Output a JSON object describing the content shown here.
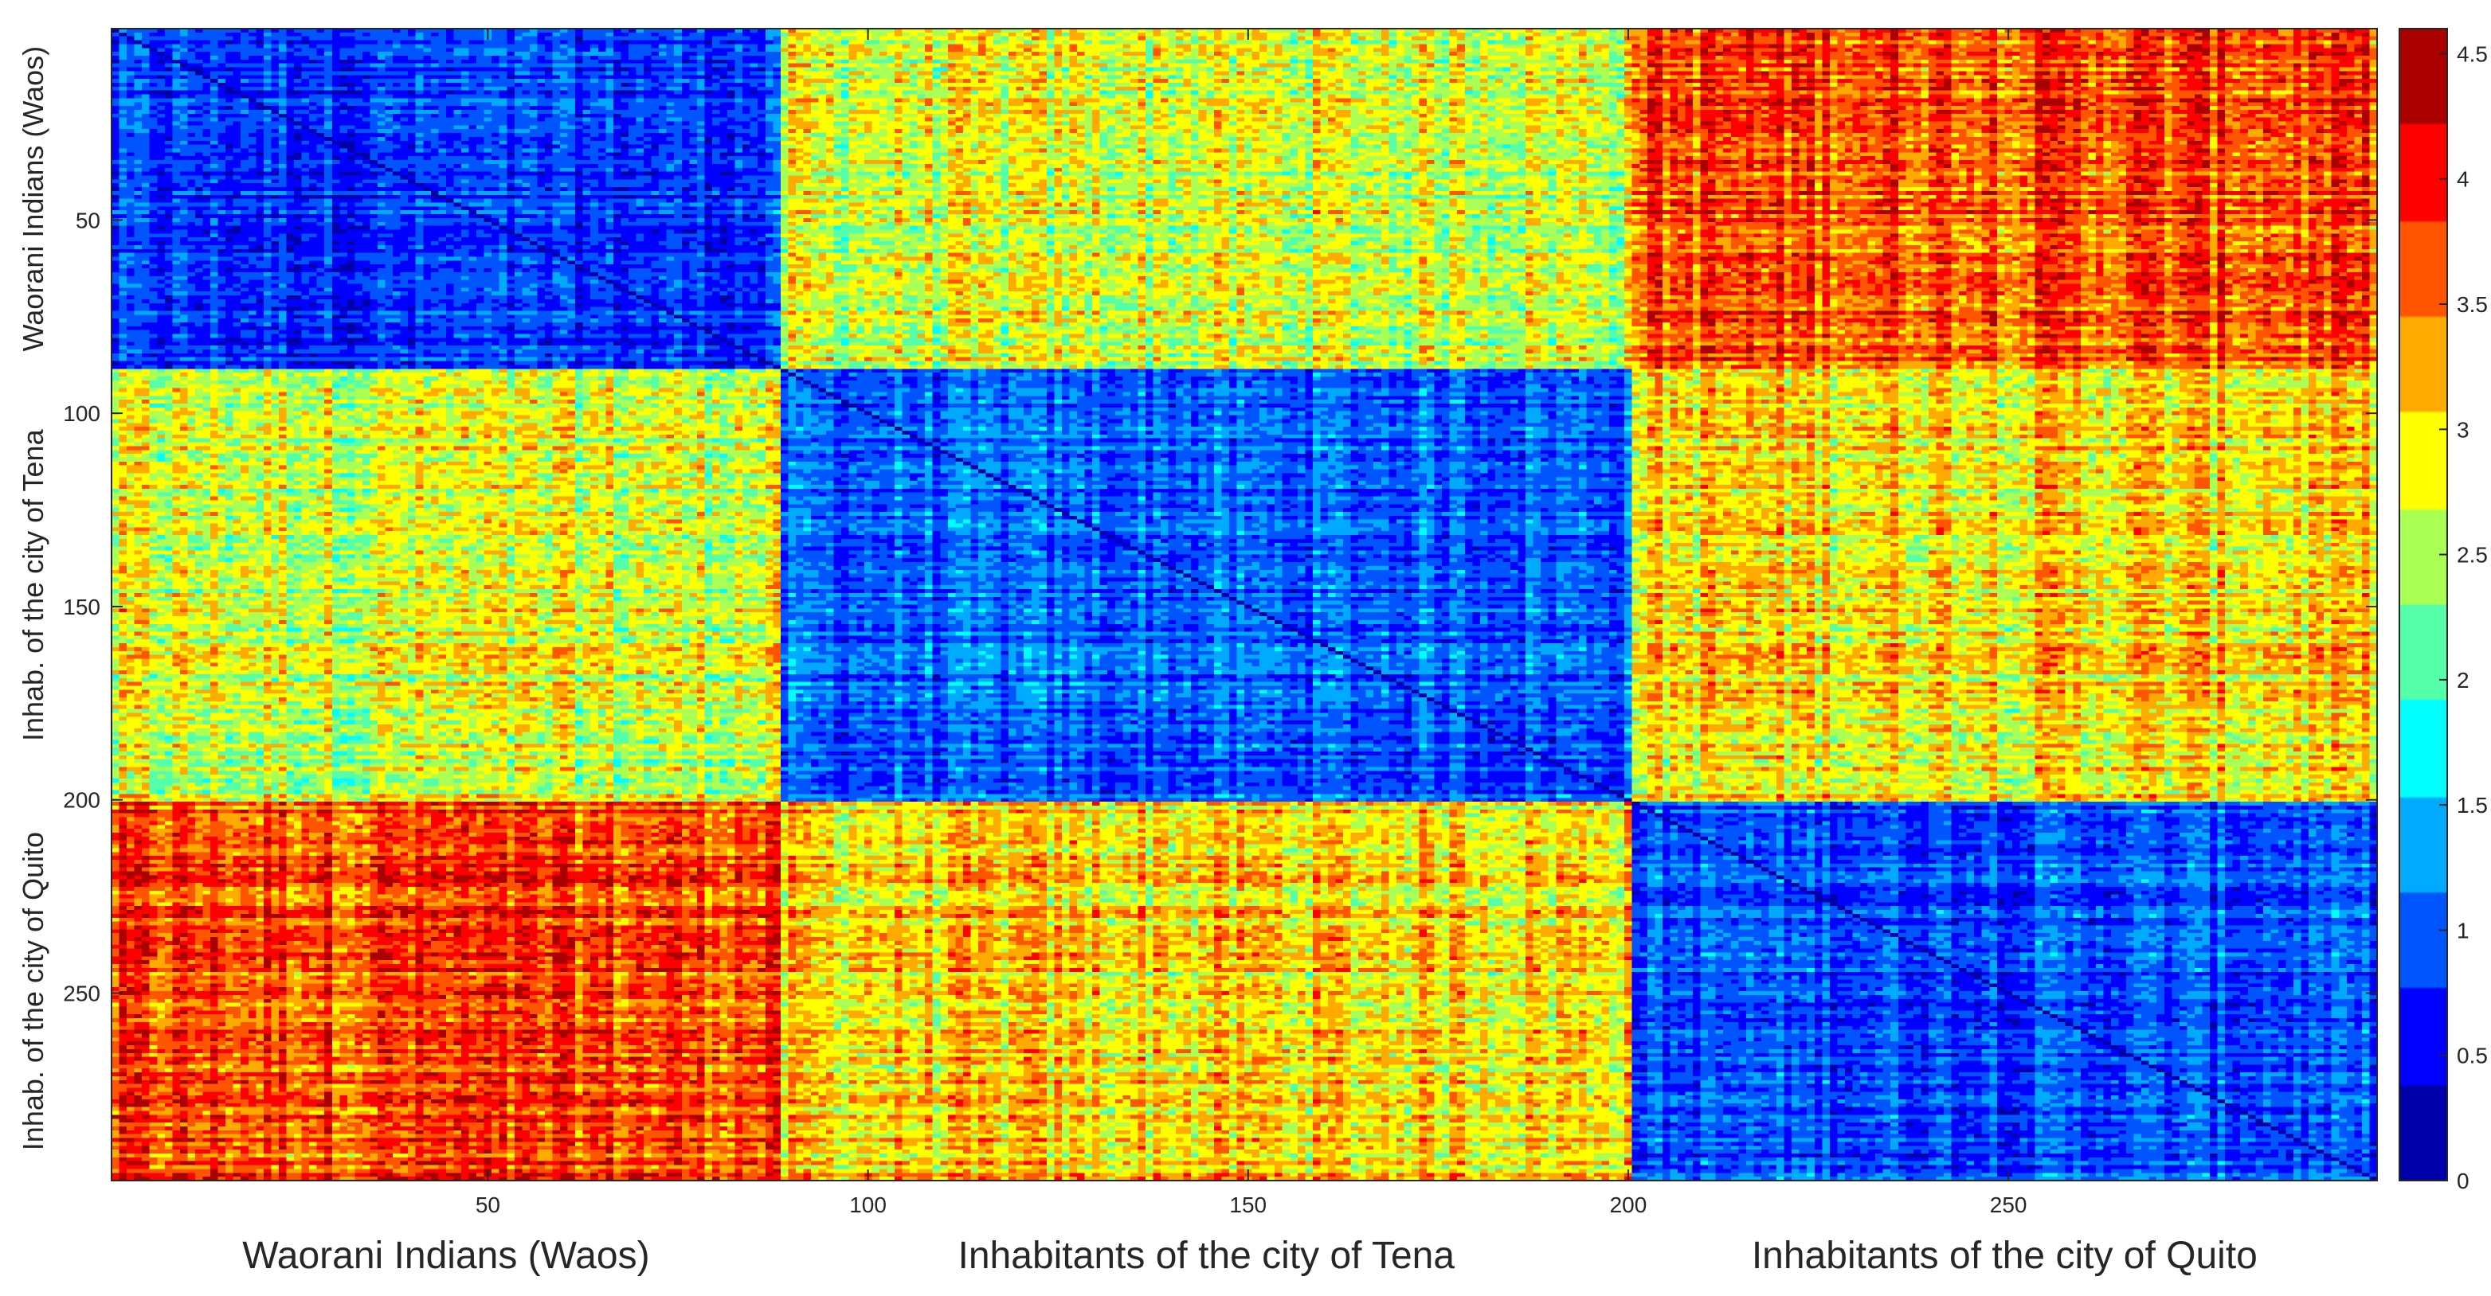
{
  "chart_data": {
    "type": "heatmap",
    "title": "",
    "matrix_size": 298,
    "xlim": [
      1,
      298
    ],
    "ylim": [
      1,
      298
    ],
    "x_ticks": [
      50,
      100,
      150,
      200,
      250
    ],
    "y_ticks": [
      50,
      100,
      150,
      200,
      250
    ],
    "x_tick_labels": [
      "50",
      "100",
      "150",
      "200",
      "250"
    ],
    "y_tick_labels": [
      "50",
      "100",
      "150",
      "200",
      "250"
    ],
    "groups": [
      {
        "name": "Waorani Indians (Waos)",
        "ylabel": "Waorani Indians (Waos)",
        "start": 1,
        "end": 88
      },
      {
        "name": "Inhabitants of the city of Tena",
        "ylabel": "Inhab. of the city of Tena",
        "start": 89,
        "end": 200
      },
      {
        "name": "Inhabitants of the city of Quito",
        "ylabel": "Inhab. of the city of Quito",
        "start": 201,
        "end": 298
      }
    ],
    "block_means": [
      [
        0.8,
        2.7,
        3.7
      ],
      [
        2.7,
        1.0,
        3.0
      ],
      [
        3.7,
        3.0,
        0.9
      ]
    ],
    "colormap": "jet",
    "colorbar": {
      "min": 0,
      "max": 4.6,
      "ticks": [
        0,
        0.5,
        1,
        1.5,
        2,
        2.5,
        3,
        3.5,
        4,
        4.5
      ],
      "tick_labels": [
        "0",
        "0.5",
        "1",
        "1.5",
        "2",
        "2.5",
        "3",
        "3.5",
        "4",
        "4.5"
      ],
      "placement": "right"
    },
    "grid": false
  }
}
